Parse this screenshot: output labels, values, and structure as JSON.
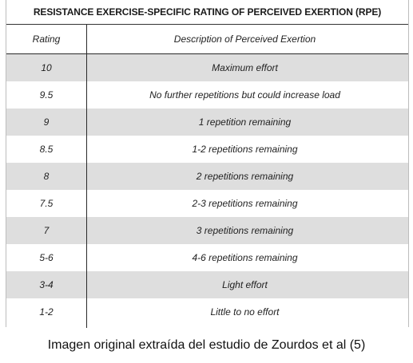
{
  "table": {
    "title": "RESISTANCE EXERCISE-SPECIFIC RATING OF PERCEIVED EXERTION (RPE)",
    "headers": {
      "rating": "Rating",
      "description": "Description of Perceived Exertion"
    },
    "rows": [
      {
        "rating": "10",
        "description": "Maximum effort"
      },
      {
        "rating": "9.5",
        "description": "No further repetitions but could increase load"
      },
      {
        "rating": "9",
        "description": "1 repetition remaining"
      },
      {
        "rating": "8.5",
        "description": "1-2 repetitions remaining"
      },
      {
        "rating": "8",
        "description": "2 repetitions remaining"
      },
      {
        "rating": "7.5",
        "description": "2-3 repetitions remaining"
      },
      {
        "rating": "7",
        "description": "3 repetitions remaining"
      },
      {
        "rating": "5-6",
        "description": "4-6 repetitions remaining"
      },
      {
        "rating": "3-4",
        "description": "Light effort"
      },
      {
        "rating": "1-2",
        "description": "Little to no effort"
      }
    ]
  },
  "caption": "Imagen original extraída del estudio de Zourdos et al (5)",
  "colors": {
    "shaded_row": "#dedede",
    "plain_row": "#ffffff",
    "rule": "#2a2a2a"
  }
}
